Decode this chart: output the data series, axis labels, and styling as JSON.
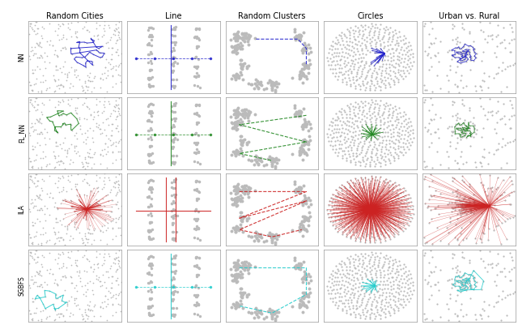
{
  "col_titles": [
    "Random Cities",
    "Line",
    "Random Clusters",
    "Circles",
    "Urban vs. Rural"
  ],
  "row_labels": [
    "NN",
    "FL_NN",
    "ILA",
    "SGBFS"
  ],
  "row_colors": [
    "#2222cc",
    "#228822",
    "#cc2222",
    "#22cccc"
  ],
  "background": "#ffffff",
  "dot_color": "#bbbbbb",
  "figsize": [
    6.4,
    4.01
  ],
  "dpi": 100,
  "title_fontsize": 7,
  "row_label_fontsize": 5.5,
  "random_seed": 42
}
